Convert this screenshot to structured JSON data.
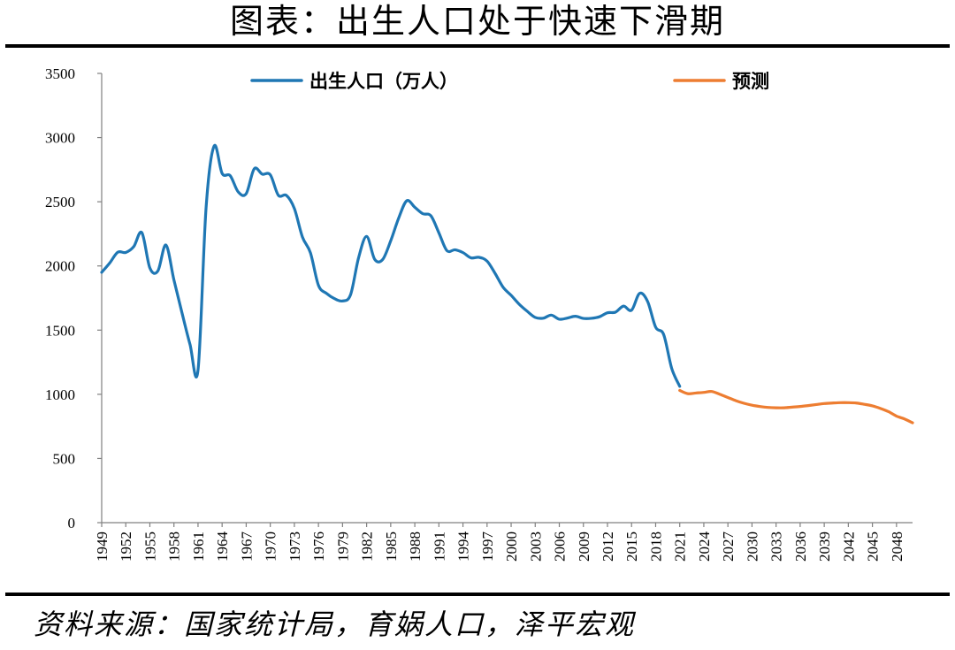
{
  "header": {
    "title": "图表：出生人口处于快速下滑期"
  },
  "footer": {
    "source": "资料来源：国家统计局，育娲人口，泽平宏观"
  },
  "chart_data": {
    "type": "line",
    "title": "",
    "xlabel": "",
    "ylabel": "",
    "ylim": [
      0,
      3500
    ],
    "yticks": [
      0,
      500,
      1000,
      1500,
      2000,
      2500,
      3000,
      3500
    ],
    "xticks": [
      1949,
      1952,
      1955,
      1958,
      1961,
      1964,
      1967,
      1970,
      1973,
      1976,
      1979,
      1982,
      1985,
      1988,
      1991,
      1994,
      1997,
      2000,
      2003,
      2006,
      2009,
      2012,
      2015,
      2018,
      2021,
      2024,
      2027,
      2030,
      2033,
      2036,
      2039,
      2042,
      2045,
      2048
    ],
    "xlim": [
      1949,
      2050
    ],
    "grid": false,
    "legend": "top",
    "series": [
      {
        "name": "出生人口（万人）",
        "color": "#1f77b4",
        "x": [
          1949,
          1950,
          1951,
          1952,
          1953,
          1954,
          1955,
          1956,
          1957,
          1958,
          1959,
          1960,
          1961,
          1962,
          1963,
          1964,
          1965,
          1966,
          1967,
          1968,
          1969,
          1970,
          1971,
          1972,
          1973,
          1974,
          1975,
          1976,
          1977,
          1978,
          1979,
          1980,
          1981,
          1982,
          1983,
          1984,
          1985,
          1986,
          1987,
          1988,
          1989,
          1990,
          1991,
          1992,
          1993,
          1994,
          1995,
          1996,
          1997,
          1998,
          1999,
          2000,
          2001,
          2002,
          2003,
          2004,
          2005,
          2006,
          2007,
          2008,
          2009,
          2010,
          2011,
          2012,
          2013,
          2014,
          2015,
          2016,
          2017,
          2018,
          2019,
          2020,
          2021
        ],
        "y": [
          1950,
          2023,
          2107,
          2105,
          2151,
          2260,
          1984,
          1961,
          2163,
          1890,
          1635,
          1389,
          1189,
          2451,
          2934,
          2721,
          2704,
          2577,
          2563,
          2757,
          2715,
          2710,
          2551,
          2550,
          2447,
          2226,
          2102,
          1849,
          1786,
          1745,
          1727,
          1776,
          2064,
          2230,
          2052,
          2050,
          2196,
          2374,
          2508,
          2457,
          2407,
          2391,
          2258,
          2119,
          2126,
          2104,
          2063,
          2067,
          2038,
          1942,
          1834,
          1771,
          1702,
          1647,
          1599,
          1593,
          1617,
          1585,
          1594,
          1608,
          1591,
          1592,
          1604,
          1635,
          1640,
          1687,
          1655,
          1786,
          1723,
          1523,
          1465,
          1202,
          1062
        ]
      },
      {
        "name": "预测",
        "color": "#ed7d31",
        "x": [
          2021,
          2022,
          2023,
          2024,
          2025,
          2026,
          2027,
          2028,
          2029,
          2030,
          2031,
          2032,
          2033,
          2034,
          2035,
          2036,
          2037,
          2038,
          2039,
          2040,
          2041,
          2042,
          2043,
          2044,
          2045,
          2046,
          2047,
          2048,
          2049,
          2050
        ],
        "y": [
          1030,
          1005,
          1010,
          1015,
          1022,
          1000,
          975,
          950,
          930,
          915,
          905,
          898,
          895,
          895,
          900,
          905,
          912,
          920,
          928,
          932,
          935,
          935,
          932,
          922,
          910,
          890,
          865,
          830,
          808,
          778
        ]
      }
    ]
  }
}
